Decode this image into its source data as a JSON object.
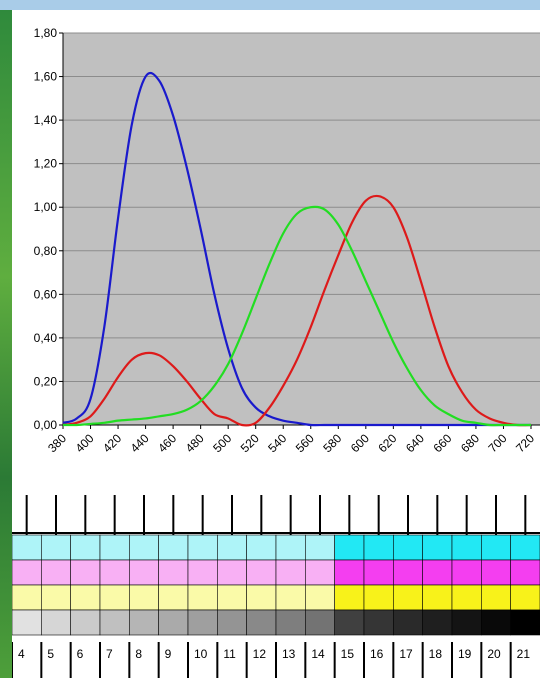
{
  "chart_data": {
    "type": "line",
    "x": [
      380,
      390,
      400,
      410,
      420,
      430,
      440,
      450,
      460,
      470,
      480,
      490,
      500,
      510,
      520,
      530,
      540,
      550,
      560,
      570,
      580,
      590,
      600,
      610,
      620,
      630,
      640,
      650,
      660,
      670,
      680,
      690,
      700,
      710,
      720
    ],
    "series": [
      {
        "color": "#1a1acc",
        "values": [
          0.01,
          0.03,
          0.12,
          0.45,
          0.95,
          1.38,
          1.6,
          1.58,
          1.42,
          1.18,
          0.9,
          0.6,
          0.35,
          0.17,
          0.08,
          0.04,
          0.02,
          0.01,
          0,
          0,
          0,
          0,
          0,
          0,
          0,
          0,
          0,
          0,
          0,
          0,
          0,
          0,
          0,
          0,
          0
        ]
      },
      {
        "color": "#dd1a1a",
        "values": [
          0,
          0.01,
          0.04,
          0.12,
          0.22,
          0.3,
          0.33,
          0.32,
          0.27,
          0.2,
          0.12,
          0.05,
          0.03,
          0,
          0.01,
          0.08,
          0.18,
          0.3,
          0.45,
          0.62,
          0.78,
          0.93,
          1.03,
          1.05,
          1.0,
          0.86,
          0.66,
          0.45,
          0.27,
          0.15,
          0.07,
          0.03,
          0.01,
          0,
          0
        ]
      },
      {
        "color": "#22dd22",
        "values": [
          0,
          0,
          0.005,
          0.01,
          0.02,
          0.025,
          0.03,
          0.04,
          0.05,
          0.07,
          0.11,
          0.18,
          0.28,
          0.42,
          0.58,
          0.74,
          0.88,
          0.97,
          1.0,
          0.99,
          0.92,
          0.8,
          0.66,
          0.52,
          0.38,
          0.26,
          0.16,
          0.09,
          0.05,
          0.02,
          0.01,
          0,
          0,
          0,
          0
        ]
      }
    ],
    "xlim": [
      380,
      728
    ],
    "ylim": [
      0,
      1.8
    ],
    "xticks": [
      380,
      400,
      420,
      440,
      460,
      480,
      500,
      520,
      540,
      560,
      580,
      600,
      620,
      640,
      660,
      680,
      700,
      720
    ],
    "yticks": [
      {
        "value": 0,
        "label": "0,00"
      },
      {
        "value": 0.2,
        "label": "0,20"
      },
      {
        "value": 0.4,
        "label": "0,40"
      },
      {
        "value": 0.6,
        "label": "0,60"
      },
      {
        "value": 0.8,
        "label": "0,80"
      },
      {
        "value": 1.0,
        "label": "1,00"
      },
      {
        "value": 1.2,
        "label": "1,20"
      },
      {
        "value": 1.4,
        "label": "1,40"
      },
      {
        "value": 1.6,
        "label": "1,60"
      },
      {
        "value": 1.8,
        "label": "1,80"
      }
    ],
    "grid": true,
    "background": "#c0c0c0"
  },
  "patch_strip": {
    "labels": [
      4,
      5,
      6,
      7,
      8,
      9,
      10,
      11,
      12,
      13,
      14,
      15,
      16,
      17,
      18,
      19,
      20,
      21
    ]
  }
}
